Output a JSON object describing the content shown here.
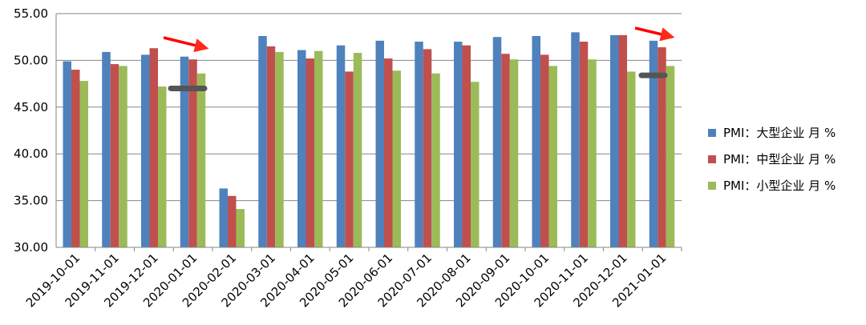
{
  "chart_data": {
    "type": "bar",
    "categories": [
      "2019-10-01",
      "2019-11-01",
      "2019-12-01",
      "2020-01-01",
      "2020-02-01",
      "2020-03-01",
      "2020-04-01",
      "2020-05-01",
      "2020-06-01",
      "2020-07-01",
      "2020-08-01",
      "2020-09-01",
      "2020-10-01",
      "2020-11-01",
      "2020-12-01",
      "2021-01-01"
    ],
    "series": [
      {
        "name": "PMI：大型企业 月 %",
        "color": "#4f81bd",
        "values": [
          49.9,
          50.9,
          50.6,
          50.4,
          36.3,
          52.6,
          51.1,
          51.6,
          52.1,
          52.0,
          52.0,
          52.5,
          52.6,
          53.0,
          52.7,
          52.1
        ]
      },
      {
        "name": "PMI：中型企业 月 %",
        "color": "#c0504d",
        "values": [
          49.0,
          49.6,
          51.3,
          50.1,
          35.5,
          51.5,
          50.2,
          48.8,
          50.2,
          51.2,
          51.6,
          50.7,
          50.6,
          52.0,
          52.7,
          51.4
        ]
      },
      {
        "name": "PMI：小型企业 月 %",
        "color": "#9bbb59",
        "values": [
          47.8,
          49.4,
          47.2,
          48.6,
          34.1,
          50.9,
          51.0,
          50.8,
          48.9,
          48.6,
          47.7,
          50.1,
          49.4,
          50.1,
          48.8,
          49.4
        ]
      }
    ],
    "yticks": [
      "30.00",
      "35.00",
      "40.00",
      "45.00",
      "50.00",
      "55.00"
    ],
    "ylim": [
      30,
      55
    ],
    "grid": "horizontal",
    "legend_position": "right",
    "annotations": [
      {
        "type": "arrow",
        "color": "#ff0000",
        "near_category": "2020-01-01",
        "direction": "down-right"
      },
      {
        "type": "arrow",
        "color": "#ff0000",
        "near_category": "2021-01-01",
        "direction": "down-right"
      },
      {
        "type": "marker-bar",
        "color": "#555555",
        "near_category": "2019-12-01",
        "value": 47.0
      },
      {
        "type": "marker-bar",
        "color": "#555555",
        "near_category": "2020-12-01",
        "value": 48.4
      }
    ]
  }
}
